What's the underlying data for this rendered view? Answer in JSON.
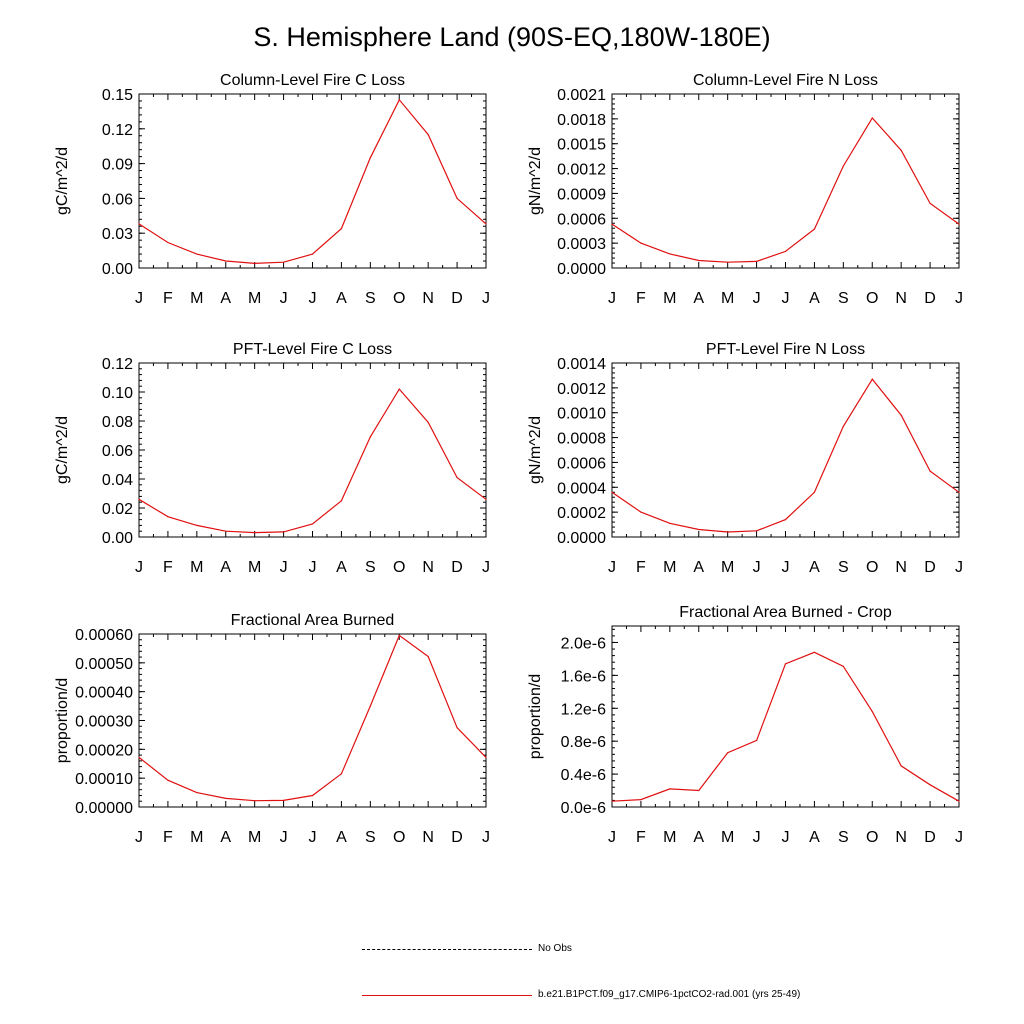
{
  "figure_title": "S. Hemisphere Land (90S-EQ,180W-180E)",
  "colors": {
    "series": "#e01010",
    "axis": "#000000"
  },
  "month_labels": [
    "J",
    "F",
    "M",
    "A",
    "M",
    "J",
    "J",
    "A",
    "S",
    "O",
    "N",
    "D",
    "J"
  ],
  "chart_data": [
    {
      "type": "line",
      "title": "Column-Level Fire C Loss",
      "ylabel": "gC/m^2/d",
      "ylim": [
        0,
        0.15
      ],
      "yticks": [
        "0.00",
        "0.03",
        "0.06",
        "0.09",
        "0.12",
        "0.15"
      ],
      "x": [
        "J",
        "F",
        "M",
        "A",
        "M",
        "J",
        "J",
        "A",
        "S",
        "O",
        "N",
        "D",
        "J"
      ],
      "series": [
        {
          "values": [
            0.038,
            0.022,
            0.012,
            0.006,
            0.004,
            0.005,
            0.012,
            0.034,
            0.095,
            0.145,
            0.115,
            0.06,
            0.038
          ]
        }
      ]
    },
    {
      "type": "line",
      "title": "Column-Level Fire N Loss",
      "ylabel": "gN/m^2/d",
      "ylim": [
        0,
        0.0021
      ],
      "yticks": [
        "0.0000",
        "0.0003",
        "0.0006",
        "0.0009",
        "0.0012",
        "0.0015",
        "0.0018",
        "0.0021"
      ],
      "x": [
        "J",
        "F",
        "M",
        "A",
        "M",
        "J",
        "J",
        "A",
        "S",
        "O",
        "N",
        "D",
        "J"
      ],
      "series": [
        {
          "values": [
            0.00053,
            0.0003,
            0.00017,
            9e-05,
            7e-05,
            8e-05,
            0.0002,
            0.00047,
            0.00123,
            0.00181,
            0.00142,
            0.00078,
            0.00053
          ]
        }
      ]
    },
    {
      "type": "line",
      "title": "PFT-Level Fire C Loss",
      "ylabel": "gC/m^2/d",
      "ylim": [
        0,
        0.12
      ],
      "yticks": [
        "0.00",
        "0.02",
        "0.04",
        "0.06",
        "0.08",
        "0.10",
        "0.12"
      ],
      "x": [
        "J",
        "F",
        "M",
        "A",
        "M",
        "J",
        "J",
        "A",
        "S",
        "O",
        "N",
        "D",
        "J"
      ],
      "series": [
        {
          "values": [
            0.026,
            0.014,
            0.008,
            0.004,
            0.003,
            0.0035,
            0.009,
            0.025,
            0.069,
            0.102,
            0.079,
            0.041,
            0.026
          ]
        }
      ]
    },
    {
      "type": "line",
      "title": "PFT-Level Fire N Loss",
      "ylabel": "gN/m^2/d",
      "ylim": [
        0,
        0.0014
      ],
      "yticks": [
        "0.0000",
        "0.0002",
        "0.0004",
        "0.0006",
        "0.0008",
        "0.0010",
        "0.0012",
        "0.0014"
      ],
      "x": [
        "J",
        "F",
        "M",
        "A",
        "M",
        "J",
        "J",
        "A",
        "S",
        "O",
        "N",
        "D",
        "J"
      ],
      "series": [
        {
          "values": [
            0.00036,
            0.0002,
            0.00011,
            6e-05,
            4e-05,
            5e-05,
            0.00014,
            0.00036,
            0.00089,
            0.00127,
            0.00098,
            0.00053,
            0.00036
          ]
        }
      ]
    },
    {
      "type": "line",
      "title": "Fractional Area Burned",
      "ylabel": "proportion/d",
      "ylim": [
        0,
        0.0006
      ],
      "yticks": [
        "0.00000",
        "0.00010",
        "0.00020",
        "0.00030",
        "0.00040",
        "0.00050",
        "0.00060"
      ],
      "x": [
        "J",
        "F",
        "M",
        "A",
        "M",
        "J",
        "J",
        "A",
        "S",
        "O",
        "N",
        "D",
        "J"
      ],
      "series": [
        {
          "values": [
            0.000172,
            9.3e-05,
            5e-05,
            3e-05,
            2.2e-05,
            2.3e-05,
            4e-05,
            0.000115,
            0.00035,
            0.000595,
            0.000522,
            0.000275,
            0.000172
          ]
        }
      ]
    },
    {
      "type": "line",
      "title": "Fractional Area Burned - Crop",
      "ylabel": "proportion/d",
      "ylim": [
        0,
        2.2e-06
      ],
      "yticks": [
        "0.0e-6",
        "0.4e-6",
        "0.8e-6",
        "1.2e-6",
        "1.6e-6",
        "2.0e-6"
      ],
      "ytick_values": [
        0,
        4e-07,
        8e-07,
        1.2e-06,
        1.6e-06,
        2e-06
      ],
      "x": [
        "J",
        "F",
        "M",
        "A",
        "M",
        "J",
        "J",
        "A",
        "S",
        "O",
        "N",
        "D",
        "J"
      ],
      "series": [
        {
          "values": [
            7e-08,
            9e-08,
            2.2e-07,
            2e-07,
            6.6e-07,
            8.1e-07,
            1.74e-06,
            1.88e-06,
            1.71e-06,
            1.16e-06,
            5e-07,
            2.7e-07,
            7e-08
          ]
        }
      ]
    }
  ],
  "legend": [
    {
      "style": "dashed",
      "label": "No Obs"
    },
    {
      "style": "solid",
      "label": "b.e21.B1PCT.f09_g17.CMIP6-1pctCO2-rad.001 (yrs 25-49)"
    }
  ]
}
